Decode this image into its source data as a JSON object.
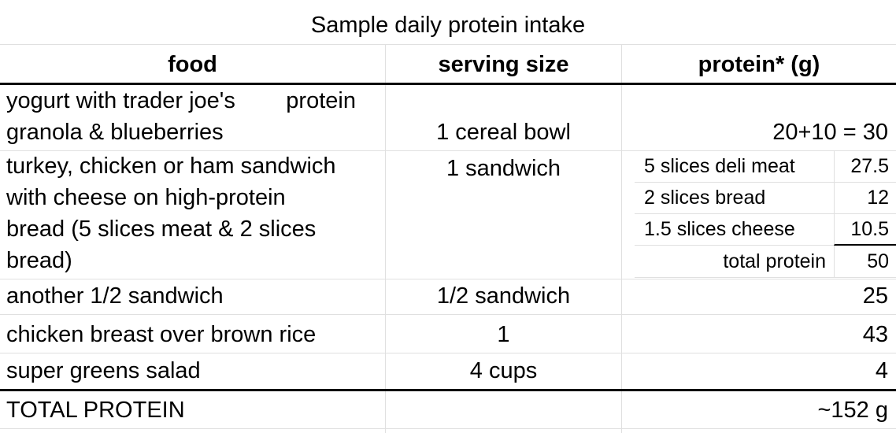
{
  "title": "Sample daily protein intake",
  "columns": {
    "food": "food",
    "serving": "serving size",
    "protein": "protein* (g)"
  },
  "rows": [
    {
      "food": "yogurt with trader joe's        protein\ngranola & blueberries",
      "serving": "1 cereal bowl",
      "protein": "20+10 = 30"
    },
    {
      "food": "turkey, chicken or ham sandwich\nwith cheese on high-protein\nbread (5 slices meat & 2 slices\nbread)",
      "serving": "1 sandwich",
      "breakdown": [
        {
          "label": "5 slices deli meat",
          "value": "27.5"
        },
        {
          "label": "2 slices bread",
          "value": "12"
        },
        {
          "label": "1.5 slices cheese",
          "value": "10.5"
        },
        {
          "label": "total protein",
          "value": "50"
        }
      ]
    },
    {
      "food": "another 1/2 sandwich",
      "serving": "1/2 sandwich",
      "protein": "25"
    },
    {
      "food": "chicken breast over brown rice",
      "serving": "1",
      "protein": "43"
    },
    {
      "food": "super greens salad",
      "serving": "4 cups",
      "protein": "4"
    }
  ],
  "total": {
    "label": "TOTAL PROTEIN",
    "value": "~152 g"
  },
  "colors": {
    "background": "#ffffff",
    "text": "#000000",
    "gridline": "#e0e0e0",
    "strong_border": "#000000"
  }
}
